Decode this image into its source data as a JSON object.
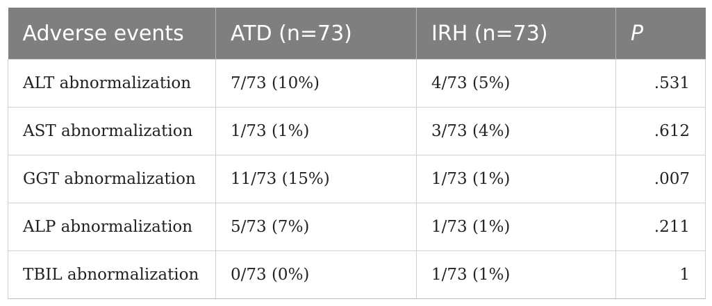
{
  "table": {
    "headers": {
      "event": "Adverse events",
      "atd": "ATD (n=73)",
      "irh": "IRH (n=73)",
      "p": "P"
    },
    "rows": [
      {
        "event": "ALT abnormalization",
        "atd": "7/73 (10%)",
        "irh": "4/73 (5%)",
        "p": ".531"
      },
      {
        "event": "AST abnormalization",
        "atd": "1/73 (1%)",
        "irh": "3/73 (4%)",
        "p": ".612"
      },
      {
        "event": "GGT abnormalization",
        "atd": "11/73 (15%)",
        "irh": "1/73 (1%)",
        "p": ".007"
      },
      {
        "event": "ALP abnormalization",
        "atd": "5/73 (7%)",
        "irh": "1/73 (1%)",
        "p": ".211"
      },
      {
        "event": "TBIL abnormalization",
        "atd": "0/73 (0%)",
        "irh": "1/73 (1%)",
        "p": "1"
      }
    ]
  },
  "colors": {
    "header_bg": "#7f7f7f",
    "header_text": "#ffffff",
    "cell_border": "#cfcfcf"
  }
}
